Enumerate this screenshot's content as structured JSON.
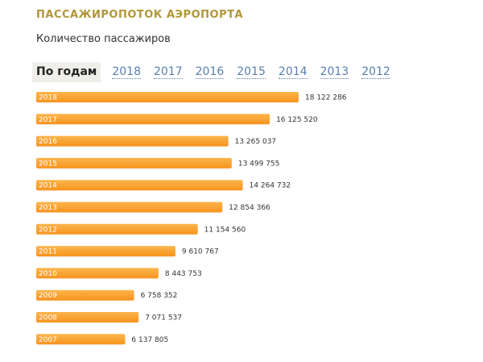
{
  "header": {
    "title": "ПАССАЖИРОПОТОК АЭРОПОРТА",
    "subtitle": "Количество пассажиров"
  },
  "tabs": [
    {
      "label": "По годам",
      "active": true
    },
    {
      "label": "2018",
      "active": false
    },
    {
      "label": "2017",
      "active": false
    },
    {
      "label": "2016",
      "active": false
    },
    {
      "label": "2015",
      "active": false
    },
    {
      "label": "2014",
      "active": false
    },
    {
      "label": "2013",
      "active": false
    },
    {
      "label": "2012",
      "active": false
    }
  ],
  "colors": {
    "bar": "#f7931e",
    "bar_light": "#fbb54c",
    "title": "#b0963a",
    "tab_link": "#5a7fb0"
  },
  "chart_data": {
    "type": "bar",
    "orientation": "horizontal",
    "title": "Количество пассажиров",
    "categories": [
      "2018",
      "2017",
      "2016",
      "2015",
      "2014",
      "2013",
      "2012",
      "2011",
      "2010",
      "2009",
      "2008",
      "2007"
    ],
    "values": [
      18122286,
      16125520,
      13265037,
      13499755,
      14264732,
      12854366,
      11154560,
      9610767,
      8443753,
      6758352,
      7071537,
      6137805
    ],
    "value_labels": [
      "18 122 286",
      "16 125 520",
      "13 265 037",
      "13 499 755",
      "14 264 732",
      "12 854 366",
      "11 154 560",
      "9 610 767",
      "8 443 753",
      "6 758 352",
      "7 071 537",
      "6 137 805"
    ],
    "xlim": [
      0,
      18122286
    ],
    "xlabel": "",
    "ylabel": ""
  }
}
